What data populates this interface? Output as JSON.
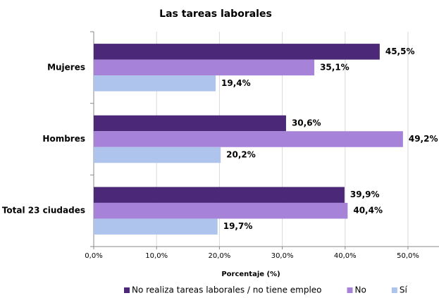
{
  "chart_data": {
    "type": "hbar",
    "title": "Las tareas laborales",
    "xlabel": "Porcentaje (%)",
    "categories": [
      "Mujeres",
      "Hombres",
      "Total 23 ciudades"
    ],
    "series": [
      {
        "name": "No realiza tareas laborales / no tiene empleo",
        "color": "#4b2878",
        "values": [
          45.5,
          30.6,
          39.9
        ],
        "value_labels": [
          "45,5%",
          "30,6%",
          "39,9%"
        ]
      },
      {
        "name": "No",
        "color": "#a683d9",
        "values": [
          35.1,
          49.2,
          40.4
        ],
        "value_labels": [
          "35,1%",
          "49,2%",
          "40,4%"
        ]
      },
      {
        "name": "Sí",
        "color": "#aec4ec",
        "values": [
          19.4,
          20.2,
          19.7
        ],
        "value_labels": [
          "19,4%",
          "20,2%",
          "19,7%"
        ]
      }
    ],
    "xlim": [
      0,
      55
    ],
    "xticks": [
      {
        "value": 0,
        "label": "0,0%"
      },
      {
        "value": 10,
        "label": "10,0%"
      },
      {
        "value": 20,
        "label": "20,0%"
      },
      {
        "value": 30,
        "label": "30,0%"
      },
      {
        "value": 40,
        "label": "40,0%"
      },
      {
        "value": 50,
        "label": "50,0%"
      }
    ],
    "grid": true,
    "legend": "bottom"
  }
}
